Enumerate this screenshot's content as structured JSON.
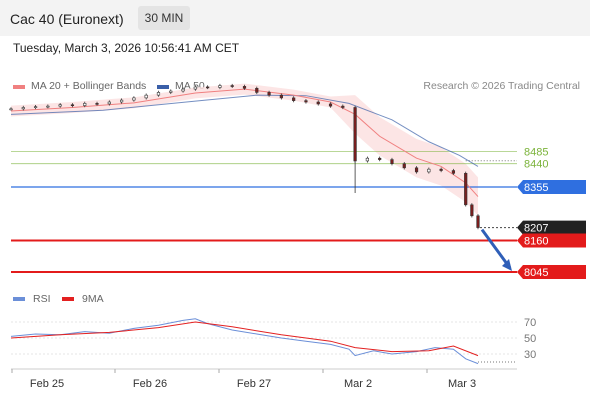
{
  "header": {
    "title": "Cac 40 (Euronext)",
    "timeframe": "30 MIN"
  },
  "timestamp": "Tuesday, March 3, 2026 10:56:41 AM CET",
  "legend": {
    "ma20_label": "MA 20 + Bollinger Bands",
    "ma50_label": "MA 50",
    "ma20_color": "#f08080",
    "ma50_color": "#3a5fa8",
    "credit": "Research © 2026 Trading Central"
  },
  "rsi_legend": {
    "rsi_label": "RSI",
    "ma_label": "9MA",
    "rsi_color": "#6b8fd8",
    "ma_color": "#e32020"
  },
  "chart_data": {
    "type": "line",
    "x_tick_labels": [
      "Feb 25",
      "Feb 26",
      "Feb 27",
      "Mar 2",
      "Mar 3"
    ],
    "price_levels": [
      {
        "label": "8485",
        "value": 8485,
        "kind": "resistance",
        "color": "#7bb33a"
      },
      {
        "label": "8440",
        "value": 8440,
        "kind": "resistance",
        "color": "#7bb33a"
      },
      {
        "label": "8355",
        "value": 8355,
        "kind": "pivot",
        "color": "#2f6fe0"
      },
      {
        "label": "8207",
        "value": 8207,
        "kind": "last",
        "color": "#222222"
      },
      {
        "label": "8160",
        "value": 8160,
        "kind": "support",
        "color": "#e31b1b"
      },
      {
        "label": "8045",
        "value": 8045,
        "kind": "support",
        "color": "#e31b1b"
      }
    ],
    "close_series": [
      {
        "x": 0,
        "y": 8640
      },
      {
        "x": 4,
        "y": 8645
      },
      {
        "x": 8,
        "y": 8648
      },
      {
        "x": 12,
        "y": 8650
      },
      {
        "x": 16,
        "y": 8655
      },
      {
        "x": 20,
        "y": 8652
      },
      {
        "x": 24,
        "y": 8660
      },
      {
        "x": 28,
        "y": 8658
      },
      {
        "x": 32,
        "y": 8665
      },
      {
        "x": 36,
        "y": 8672
      },
      {
        "x": 40,
        "y": 8680
      },
      {
        "x": 44,
        "y": 8690
      },
      {
        "x": 48,
        "y": 8700
      },
      {
        "x": 52,
        "y": 8705
      },
      {
        "x": 56,
        "y": 8712
      },
      {
        "x": 60,
        "y": 8720
      },
      {
        "x": 64,
        "y": 8718
      },
      {
        "x": 68,
        "y": 8725
      },
      {
        "x": 72,
        "y": 8722
      },
      {
        "x": 76,
        "y": 8715
      },
      {
        "x": 80,
        "y": 8700
      },
      {
        "x": 84,
        "y": 8690
      },
      {
        "x": 88,
        "y": 8680
      },
      {
        "x": 92,
        "y": 8670
      },
      {
        "x": 96,
        "y": 8665
      },
      {
        "x": 100,
        "y": 8658
      },
      {
        "x": 104,
        "y": 8650
      },
      {
        "x": 108,
        "y": 8645
      },
      {
        "x": 112,
        "y": 8450
      },
      {
        "x": 116,
        "y": 8460
      },
      {
        "x": 120,
        "y": 8455
      },
      {
        "x": 124,
        "y": 8440
      },
      {
        "x": 128,
        "y": 8425
      },
      {
        "x": 132,
        "y": 8410
      },
      {
        "x": 136,
        "y": 8420
      },
      {
        "x": 140,
        "y": 8415
      },
      {
        "x": 144,
        "y": 8405
      },
      {
        "x": 148,
        "y": 8290
      },
      {
        "x": 150,
        "y": 8250
      },
      {
        "x": 152,
        "y": 8207
      }
    ],
    "ma20": [
      {
        "x": 0,
        "y": 8632
      },
      {
        "x": 20,
        "y": 8645
      },
      {
        "x": 40,
        "y": 8662
      },
      {
        "x": 60,
        "y": 8698
      },
      {
        "x": 76,
        "y": 8712
      },
      {
        "x": 92,
        "y": 8690
      },
      {
        "x": 104,
        "y": 8665
      },
      {
        "x": 112,
        "y": 8620
      },
      {
        "x": 120,
        "y": 8540
      },
      {
        "x": 132,
        "y": 8460
      },
      {
        "x": 140,
        "y": 8430
      },
      {
        "x": 148,
        "y": 8370
      },
      {
        "x": 152,
        "y": 8320
      }
    ],
    "ma50": [
      {
        "x": 0,
        "y": 8620
      },
      {
        "x": 30,
        "y": 8635
      },
      {
        "x": 60,
        "y": 8668
      },
      {
        "x": 80,
        "y": 8690
      },
      {
        "x": 96,
        "y": 8688
      },
      {
        "x": 110,
        "y": 8660
      },
      {
        "x": 124,
        "y": 8600
      },
      {
        "x": 136,
        "y": 8520
      },
      {
        "x": 146,
        "y": 8470
      },
      {
        "x": 152,
        "y": 8430
      }
    ],
    "rsi_ticks": [
      70,
      50,
      30
    ],
    "rsi_series": [
      {
        "x": 0,
        "y": 52
      },
      {
        "x": 8,
        "y": 55
      },
      {
        "x": 16,
        "y": 54
      },
      {
        "x": 24,
        "y": 58
      },
      {
        "x": 32,
        "y": 56
      },
      {
        "x": 40,
        "y": 62
      },
      {
        "x": 48,
        "y": 66
      },
      {
        "x": 56,
        "y": 72
      },
      {
        "x": 60,
        "y": 74
      },
      {
        "x": 64,
        "y": 68
      },
      {
        "x": 72,
        "y": 60
      },
      {
        "x": 80,
        "y": 55
      },
      {
        "x": 88,
        "y": 50
      },
      {
        "x": 96,
        "y": 46
      },
      {
        "x": 104,
        "y": 42
      },
      {
        "x": 110,
        "y": 36
      },
      {
        "x": 112,
        "y": 28
      },
      {
        "x": 118,
        "y": 34
      },
      {
        "x": 124,
        "y": 30
      },
      {
        "x": 132,
        "y": 33
      },
      {
        "x": 138,
        "y": 38
      },
      {
        "x": 144,
        "y": 36
      },
      {
        "x": 148,
        "y": 24
      },
      {
        "x": 152,
        "y": 18
      }
    ],
    "rsi_ma_series": [
      {
        "x": 0,
        "y": 50
      },
      {
        "x": 16,
        "y": 54
      },
      {
        "x": 32,
        "y": 57
      },
      {
        "x": 48,
        "y": 63
      },
      {
        "x": 60,
        "y": 70
      },
      {
        "x": 72,
        "y": 64
      },
      {
        "x": 88,
        "y": 54
      },
      {
        "x": 104,
        "y": 46
      },
      {
        "x": 112,
        "y": 38
      },
      {
        "x": 124,
        "y": 33
      },
      {
        "x": 136,
        "y": 34
      },
      {
        "x": 144,
        "y": 40
      },
      {
        "x": 152,
        "y": 28
      }
    ]
  }
}
